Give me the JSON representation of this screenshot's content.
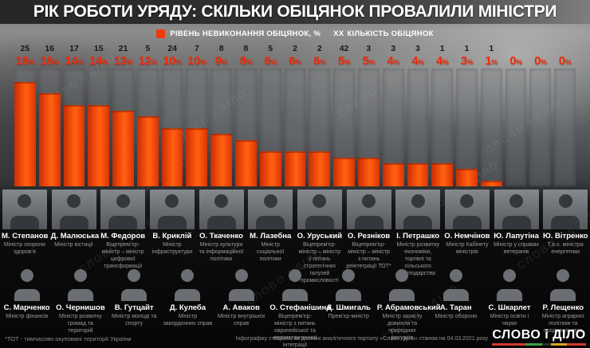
{
  "header": {
    "title": "РІК РОБОТИ УРЯДУ: СКІЛЬКИ ОБІЦЯНОК ПРОВАЛИЛИ МІНІСТРИ"
  },
  "legend": {
    "bar_label": "РІВЕНЬ НЕВИКОНАННЯ ОБІЦЯНОК, %",
    "count_symbol": "ХХ",
    "count_label": "КІЛЬКІСТЬ ОБІЦЯНОК"
  },
  "chart_data": {
    "type": "bar",
    "title": "Рік роботи уряду: скільки обіцянок провалили міністри",
    "ylim": [
      0,
      18
    ],
    "grid": false,
    "legend_position": "top",
    "percent_suffix": "%",
    "series": [
      {
        "name": "РІВЕНЬ НЕВИКОНАННЯ ОБІЦЯНОК, %",
        "values": [
          18,
          16,
          14,
          14,
          13,
          12,
          10,
          10,
          9,
          8,
          6,
          6,
          6,
          5,
          5,
          4,
          4,
          4,
          3,
          1,
          0,
          0,
          0
        ]
      },
      {
        "name": "КІЛЬКІСТЬ ОБІЦЯНОК",
        "values": [
          25,
          16,
          17,
          15,
          21,
          5,
          24,
          7,
          8,
          8,
          5,
          2,
          2,
          42,
          3,
          3,
          3,
          1,
          1,
          1,
          null,
          null,
          null
        ]
      }
    ],
    "bar_color": "#f1480c",
    "value_label_color": "#ef2c09",
    "count_label_color": "#1a1a1a"
  },
  "ministers": {
    "row1": [
      {
        "name": "М. Степанов",
        "role": "Міністр охорони здоров’я"
      },
      {
        "name": "Д. Малюська",
        "role": "Міністр юстиції"
      },
      {
        "name": "М. Федоров",
        "role": "Віцепрем’єр-міністр – міністр цифрової трансформації"
      },
      {
        "name": "В. Криклій",
        "role": "Міністр інфраструктури"
      },
      {
        "name": "О. Ткаченко",
        "role": "Міністр культури та інформаційної політики"
      },
      {
        "name": "М. Лазебна",
        "role": "Міністр соціальної політики"
      },
      {
        "name": "О. Уруський",
        "role": "Віцепрем’єр-міністр – міністр з питань стратегічних галузей промисловості"
      },
      {
        "name": "О. Резніков",
        "role": "Віцепрем’єр-міністр – міністр з питань реінтеграції ТОТ*"
      },
      {
        "name": "І. Петрашко",
        "role": "Міністр розвитку економіки, торгівлі та сільського господарства"
      },
      {
        "name": "О. Немчінов",
        "role": "Міністр Кабінету міністрів"
      },
      {
        "name": "Ю. Лапутіна",
        "role": "Міністр у справах ветеранів"
      },
      {
        "name": "Ю. Вітренко",
        "role": "Т.в.о. міністра енергетики"
      }
    ],
    "row2": [
      {
        "name": "С. Марченко",
        "role": "Міністр фінансів"
      },
      {
        "name": "О. Чернишов",
        "role": "Міністр розвитку громад та територій"
      },
      {
        "name": "В. Гутцайт",
        "role": "Міністр молоді та спорту"
      },
      {
        "name": "Д. Кулеба",
        "role": "Міністр закордонних справ"
      },
      {
        "name": "А. Аваков",
        "role": "Міністр внутрішніх справ"
      },
      {
        "name": "О. Стефанішина",
        "role": "Віцепрем’єр-міністр з питань європейської та євроатлантичної інтеграції"
      },
      {
        "name": "Д. Шмигаль",
        "role": "Прем’єр-міністр"
      },
      {
        "name": "Р. Абрамовський",
        "role": "Міністр захисту довкілля та природних ресурсів"
      },
      {
        "name": "А. Таран",
        "role": "Міністр оборони"
      },
      {
        "name": "С. Шкарлет",
        "role": "Міністр освіти і науки"
      },
      {
        "name": "Р. Лещенко",
        "role": "Міністр аграрної політики та продовольства"
      }
    ]
  },
  "footer": {
    "footnote": "*ТОТ - тимчасово окуповані території України",
    "credit": "Інфографіку створено за даними аналітичного порталу «Слово і діло» станом на 04.03.2021 року",
    "logo_text": "СЛОВО і ДІЛО",
    "logo_underline_colors": [
      "#cf3a2c",
      "#3f9e47",
      "#2e2e2e",
      "#dca51d",
      "#cf3a2c"
    ]
  },
  "watermark": "СЛОВО І ДІЛО"
}
